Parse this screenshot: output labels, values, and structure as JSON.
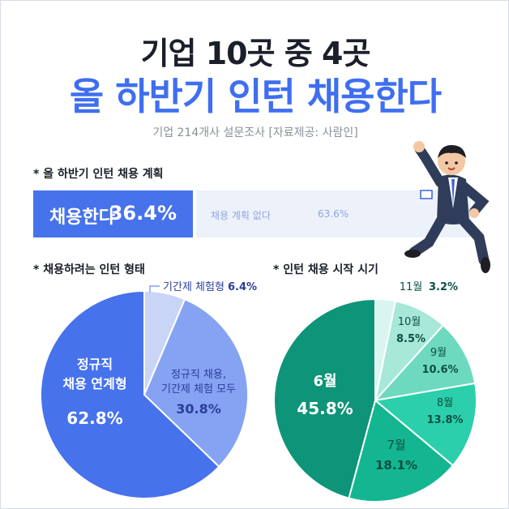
{
  "header": {
    "title_line1": "기업 10곳 중 4곳",
    "title_line2": "올 하반기 인턴 채용한다",
    "subtitle": "기업 214개사 설문조사 [자료제공: 사람인]"
  },
  "sections": {
    "plan": "* 올 하반기 인턴 채용 계획",
    "type": "* 채용하려는 인턴 형태",
    "timing": "* 인턴 채용 시작 시기"
  },
  "colors": {
    "accent_blue": "#3f6ef0",
    "bar_blue": "#4672ec",
    "bar_light": "#edf1fa",
    "pie1": [
      "#4672ec",
      "#85a3f2",
      "#c9d5f7"
    ],
    "pie2": [
      "#0e9478",
      "#16c39d",
      "#5fd7bb",
      "#a1e5d5",
      "#d5f5ee"
    ]
  },
  "chart_data": [
    {
      "type": "bar",
      "stacked": true,
      "categories": [
        "채용한다",
        "채용 계획 없다"
      ],
      "values": [
        36.4,
        63.6
      ],
      "value_labels": [
        "36.4%",
        "63.6%"
      ]
    },
    {
      "type": "pie",
      "labels": [
        "정규직 채용 연계형",
        "정규직 채용, 기간제 체험 모두",
        "기간제 체험형"
      ],
      "label_lines": [
        [
          "정규직",
          "채용 연계형"
        ],
        [
          "정규직 채용,",
          "기간제 체험 모두"
        ],
        [
          "기간제 체험형"
        ]
      ],
      "values": [
        62.8,
        30.8,
        6.4
      ],
      "value_labels": [
        "62.8%",
        "30.8%",
        "6.4%"
      ]
    },
    {
      "type": "pie",
      "labels": [
        "6월",
        "7월",
        "8월",
        "9월",
        "10월",
        "11월"
      ],
      "values": [
        45.8,
        18.1,
        13.8,
        10.6,
        8.5,
        3.2
      ],
      "value_labels": [
        "45.8%",
        "18.1%",
        "13.8%",
        "10.6%",
        "8.5%",
        "3.2%"
      ]
    }
  ]
}
